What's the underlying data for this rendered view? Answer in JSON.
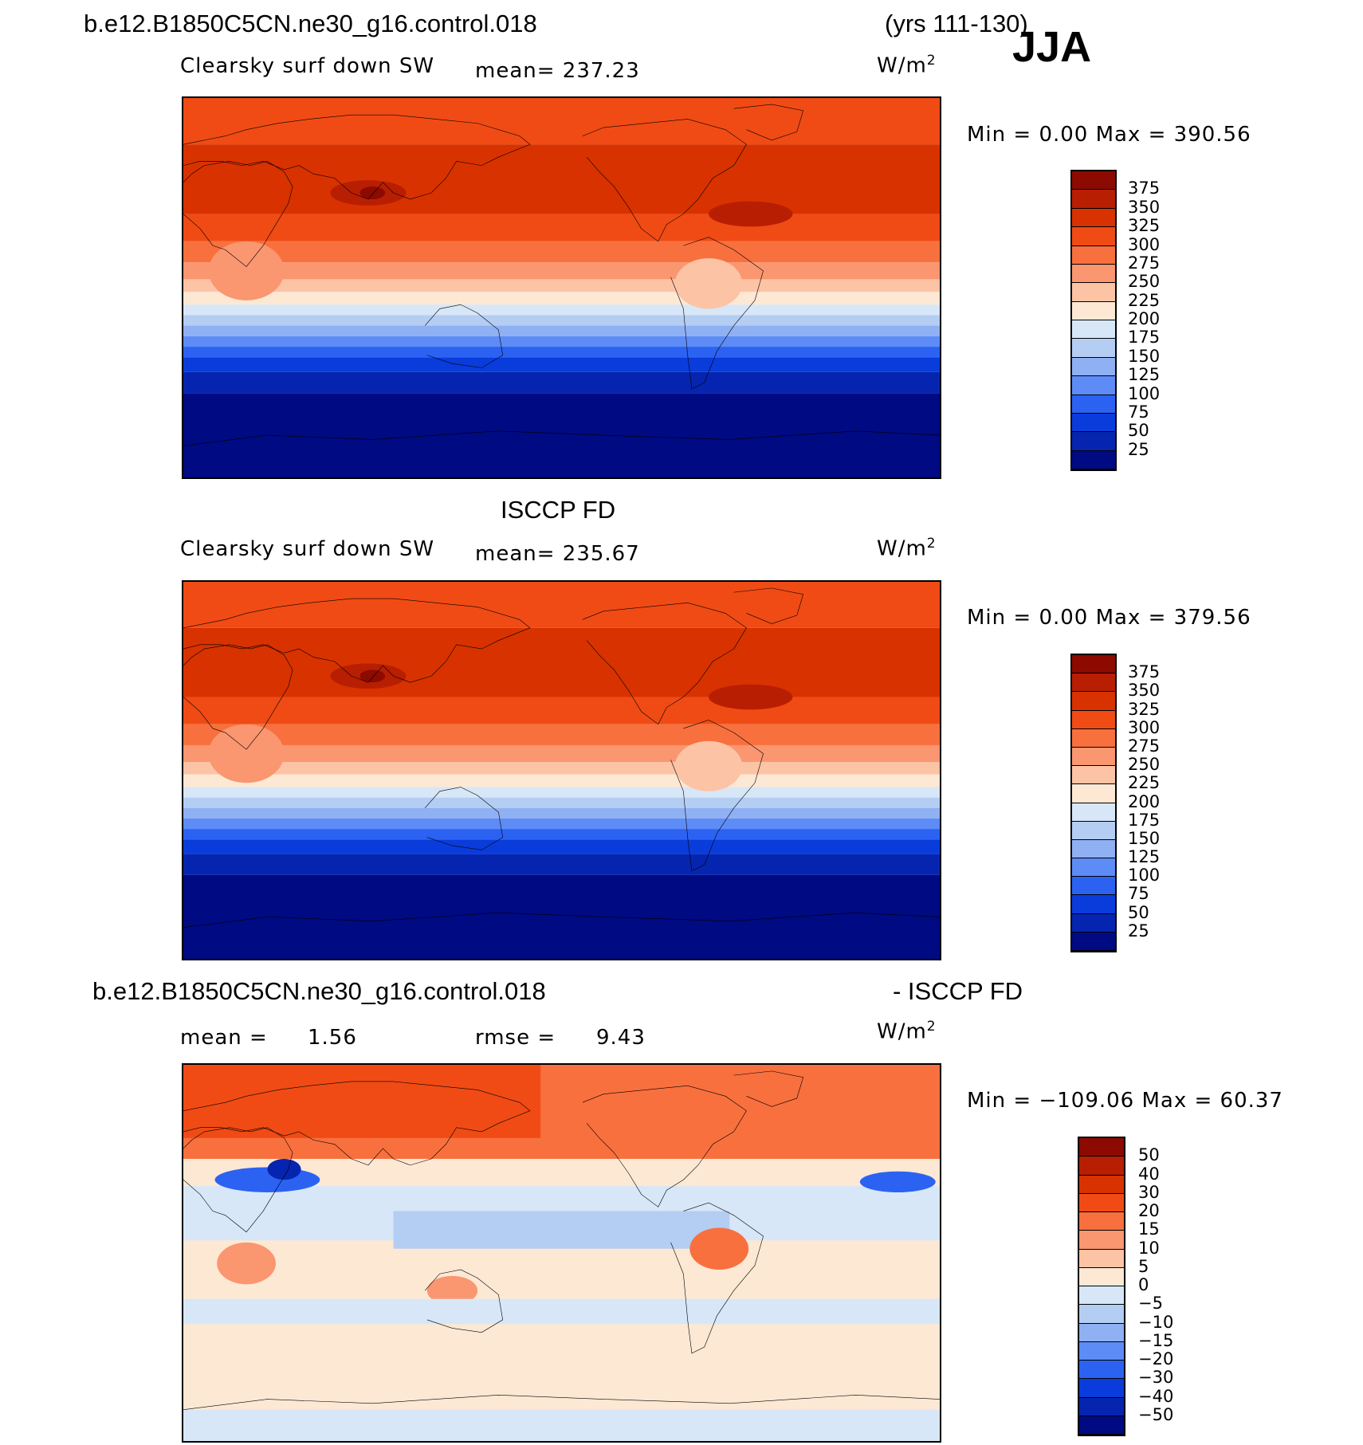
{
  "header": {
    "case_name": "b.e12.B1850C5CN.ne30_g16.control.018",
    "years": "(yrs 111-130)",
    "season": "JJA"
  },
  "panels": [
    {
      "id": "model",
      "title": "",
      "variable": "Clearsky surf down SW",
      "stat_text": "mean=  237.23",
      "units_base": "W/m",
      "units_exp": "2",
      "minmax": "Min  =     0.00  Max  =  390.56",
      "field": "absolute",
      "colorbar_labels": [
        "375",
        "350",
        "325",
        "300",
        "275",
        "250",
        "225",
        "200",
        "175",
        "150",
        "125",
        "100",
        "75",
        "50",
        "25"
      ]
    },
    {
      "id": "obs",
      "title": "ISCCP FD",
      "variable": "Clearsky surf down SW",
      "stat_text": "mean=  235.67",
      "units_base": "W/m",
      "units_exp": "2",
      "minmax": "Min  =     0.00  Max  =  379.56",
      "field": "absolute",
      "colorbar_labels": [
        "375",
        "350",
        "325",
        "300",
        "275",
        "250",
        "225",
        "200",
        "175",
        "150",
        "125",
        "100",
        "75",
        "50",
        "25"
      ]
    },
    {
      "id": "diff",
      "title_left": "b.e12.B1850C5CN.ne30_g16.control.018",
      "title_right": "- ISCCP FD",
      "mean_label": "mean  =",
      "mean_value": "1.56",
      "rmse_label": "rmse  =",
      "rmse_value": "9.43",
      "units_base": "W/m",
      "units_exp": "2",
      "minmax": "Min  = −109.06  Max  =    60.37",
      "field": "difference",
      "colorbar_labels": [
        "50",
        "40",
        "30",
        "20",
        "15",
        "10",
        "5",
        "0",
        "−5",
        "−10",
        "−15",
        "−20",
        "−30",
        "−40",
        "−50"
      ]
    }
  ],
  "colors": {
    "absolute": [
      "#8c0a00",
      "#b81e02",
      "#d83200",
      "#f04b15",
      "#f8703e",
      "#fa9670",
      "#fdc3a5",
      "#fde8d4",
      "#d7e7f7",
      "#b4cdf2",
      "#8fb0f2",
      "#5d8cf7",
      "#2b62f2",
      "#0a3cdb",
      "#0525b0",
      "#000a82"
    ],
    "difference": [
      "#8c0a00",
      "#b81e02",
      "#d83200",
      "#f04b15",
      "#f8703e",
      "#fa9670",
      "#fdc3a5",
      "#fde8d4",
      "#d7e7f7",
      "#b4cdf2",
      "#8fb0f2",
      "#5d8cf7",
      "#2b62f2",
      "#0a3cdb",
      "#0525b0",
      "#000a82"
    ]
  }
}
